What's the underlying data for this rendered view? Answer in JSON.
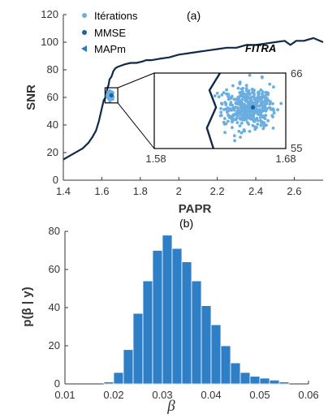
{
  "chart_data": [
    {
      "panel_label": "(a)",
      "type": "scatter",
      "xlabel": "PAPR",
      "ylabel": "SNR",
      "xlim": [
        1.4,
        2.75
      ],
      "ylim": [
        0,
        120
      ],
      "xticks": [
        "1.4",
        "1.6",
        "1.8",
        "2",
        "2.2",
        "2.4",
        "2.6"
      ],
      "yticks": [
        "0",
        "20",
        "40",
        "60",
        "80",
        "100",
        "120"
      ],
      "legend": {
        "placement": "top-left",
        "entries": [
          {
            "label": "Itérations",
            "marker": "circle",
            "color": "#6aaee0"
          },
          {
            "label": "MMSE",
            "marker": "circle",
            "color": "#1f5f9e"
          },
          {
            "label": "MAPm",
            "marker": "triangle-left",
            "color": "#2a78bd"
          }
        ]
      },
      "curve_label": "FITRA",
      "curve": {
        "name": "FITRA",
        "color": "#0f2a4a",
        "x": [
          1.4,
          1.45,
          1.5,
          1.53,
          1.55,
          1.57,
          1.585,
          1.6,
          1.61,
          1.62,
          1.625,
          1.63,
          1.635,
          1.64,
          1.65,
          1.66,
          1.67,
          1.68,
          1.7,
          1.72,
          1.75,
          1.78,
          1.81,
          1.83,
          1.86,
          1.9,
          1.95,
          2.0,
          2.05,
          2.1,
          2.15,
          2.2,
          2.25,
          2.3,
          2.35,
          2.4,
          2.45,
          2.5,
          2.55,
          2.58,
          2.61,
          2.65,
          2.7,
          2.75
        ],
        "y": [
          15,
          19,
          23,
          27,
          31,
          36,
          43,
          52,
          58,
          60,
          64,
          67,
          69,
          73,
          75,
          79,
          81,
          82,
          83,
          84,
          85,
          85,
          86,
          87,
          87,
          88,
          89,
          91,
          92,
          93,
          94,
          95,
          96,
          96,
          98,
          98,
          99,
          100,
          101,
          98,
          101,
          101,
          103,
          100
        ]
      },
      "iterations_cluster": {
        "center": [
          1.645,
          61.5
        ],
        "spread": [
          0.018,
          2.2
        ],
        "color": "#6aaee0"
      },
      "mmse": {
        "x": 1.65,
        "y": 61.5,
        "color": "#1f5f9e"
      },
      "inset": {
        "xlim": [
          1.58,
          1.68
        ],
        "ylim": [
          55,
          66
        ],
        "x_labels": [
          "1.58",
          "1.68"
        ],
        "y_labels": [
          "66",
          "55"
        ],
        "source_box": {
          "x": [
            1.617,
            1.683
          ],
          "y": [
            56,
            67
          ]
        }
      }
    },
    {
      "panel_label": "(b)",
      "type": "bar",
      "xlabel": "β",
      "ylabel": "p(β | y)",
      "xlim": [
        0.01,
        0.06
      ],
      "ylim": [
        0,
        80
      ],
      "xticks": [
        "0.01",
        "0.02",
        "0.03",
        "0.04",
        "0.05",
        "0.06"
      ],
      "yticks": [
        "0",
        "20",
        "40",
        "60",
        "80"
      ],
      "color": "#2e7fc6",
      "bin_start": 0.018,
      "bin_width": 0.002,
      "values": [
        1,
        6,
        18,
        37,
        54,
        70,
        78,
        71,
        64,
        54,
        41,
        31,
        20,
        11,
        6,
        4,
        3,
        2,
        1
      ]
    }
  ]
}
